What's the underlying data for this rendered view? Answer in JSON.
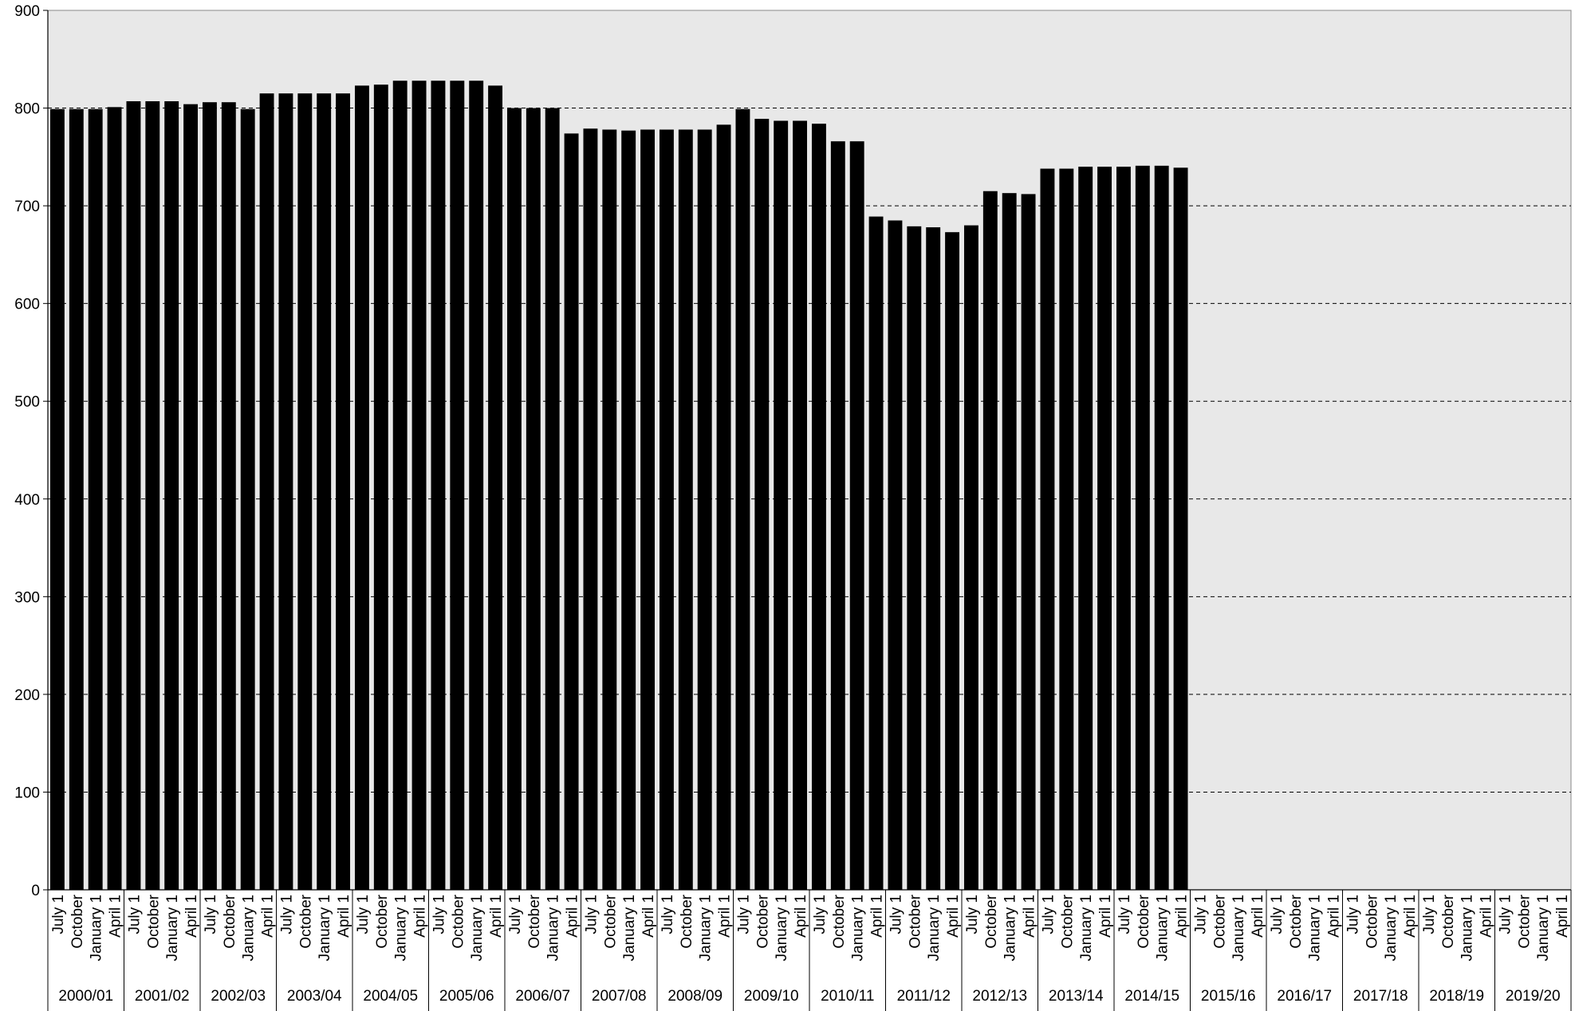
{
  "chart_data": {
    "type": "bar",
    "ylim": [
      0,
      900
    ],
    "yticks": [
      0,
      100,
      200,
      300,
      400,
      500,
      600,
      700,
      800,
      900
    ],
    "grid": "horizontal-dashed",
    "colors": {
      "bar": "#000000",
      "plot_background": "#e8e8e8",
      "grid": "#000000"
    },
    "quarter_labels": [
      "July 1",
      "October",
      "January 1",
      "April 1"
    ],
    "years": [
      "2000/01",
      "2001/02",
      "2002/03",
      "2003/04",
      "2004/05",
      "2005/06",
      "2006/07",
      "2007/08",
      "2008/09",
      "2009/10",
      "2010/11",
      "2011/12",
      "2012/13",
      "2013/14",
      "2014/15",
      "2015/16",
      "2016/17",
      "2017/18",
      "2018/19",
      "2019/20"
    ],
    "values": [
      799,
      799,
      799,
      801,
      807,
      807,
      807,
      804,
      806,
      806,
      799,
      815,
      815,
      815,
      815,
      815,
      823,
      824,
      828,
      828,
      828,
      828,
      828,
      823,
      800,
      800,
      800,
      774,
      779,
      778,
      777,
      778,
      778,
      778,
      778,
      783,
      799,
      789,
      787,
      787,
      784,
      766,
      766,
      689,
      685,
      679,
      678,
      673,
      680,
      715,
      713,
      712,
      738,
      738,
      740,
      740,
      740,
      741,
      741,
      739,
      null,
      null,
      null,
      null,
      null,
      null,
      null,
      null,
      null,
      null,
      null,
      null,
      null,
      null,
      null,
      null,
      null,
      null,
      null,
      null
    ]
  }
}
